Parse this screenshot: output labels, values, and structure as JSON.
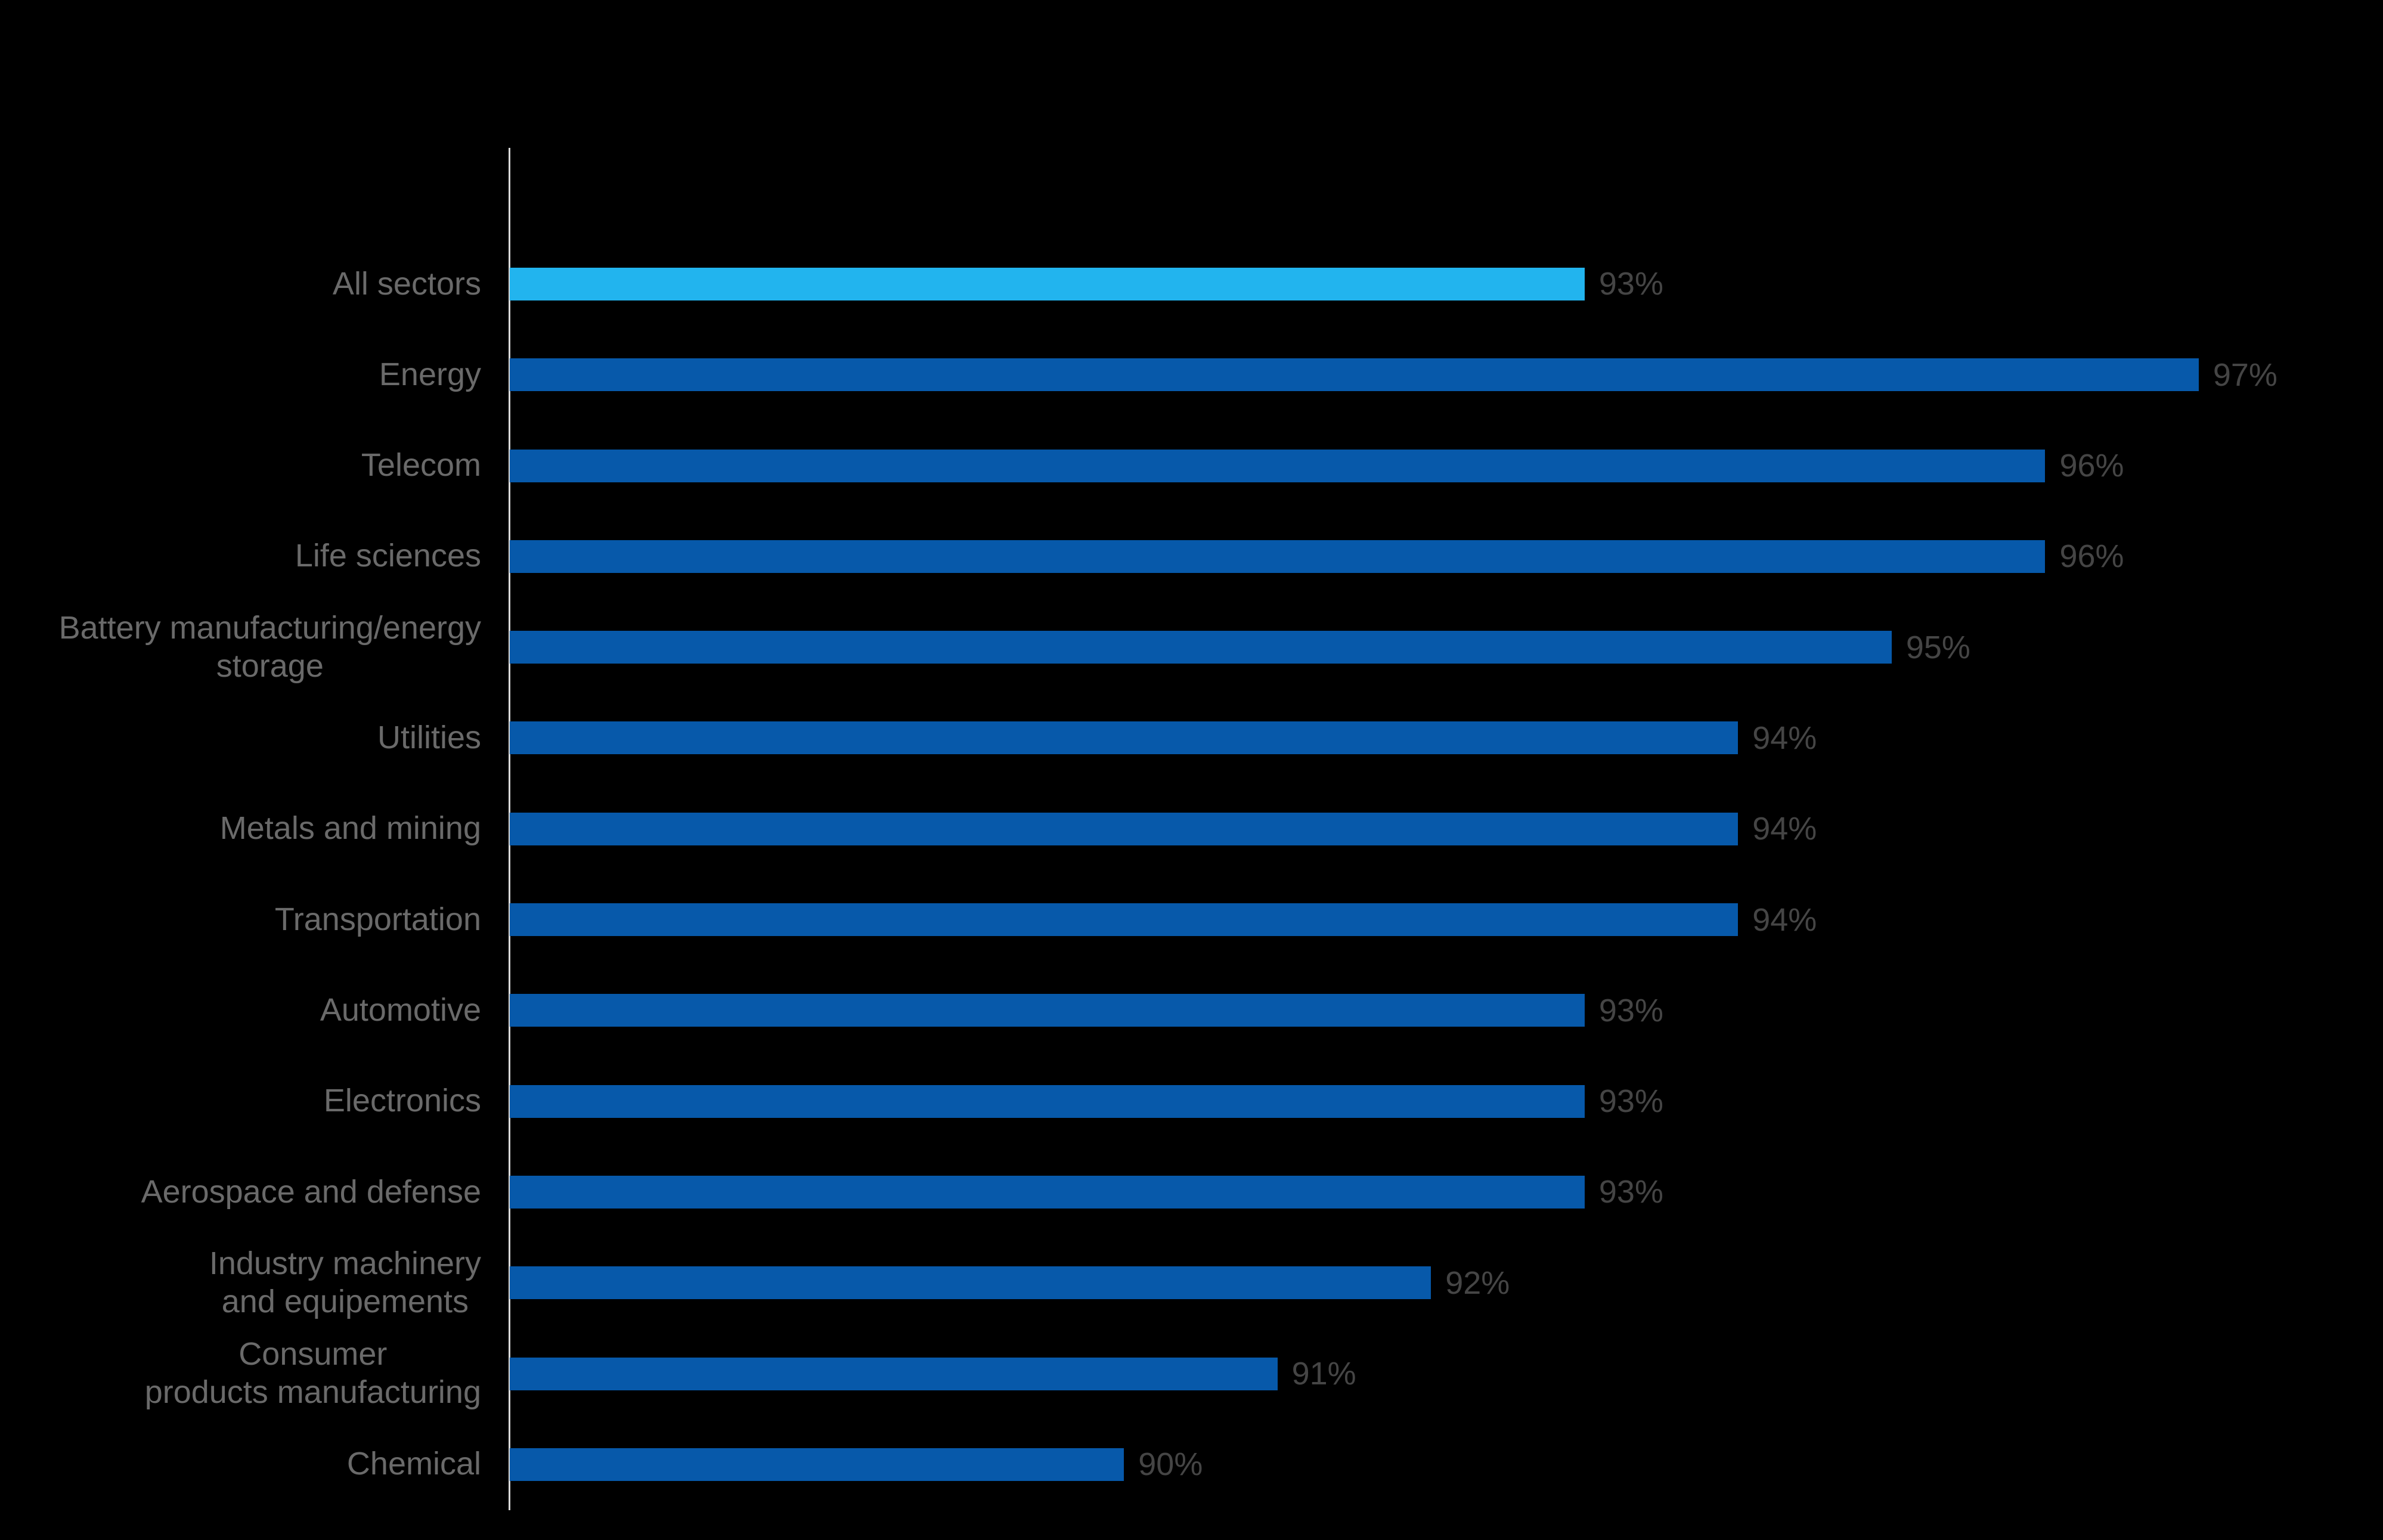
{
  "colors": {
    "background": "#000000",
    "bar": "#0759AA",
    "highlight_bar": "#22B4EE",
    "axis_line": "#D9D9D9",
    "category_label": "#6A6A6A",
    "value_label": "#454545"
  },
  "chart_data": {
    "type": "bar",
    "orientation": "horizontal",
    "title": "",
    "categories": [
      "All sectors",
      "Energy",
      "Telecom",
      "Life sciences",
      "Battery manufacturing/energy\nstorage",
      "Utilities",
      "Metals and mining",
      "Transportation",
      "Automotive",
      "Electronics",
      "Aerospace and defense",
      "Industry machinery\nand equipements",
      "Consumer\nproducts manufacturing",
      "Chemical"
    ],
    "values": [
      93,
      97,
      96,
      96,
      95,
      94,
      94,
      94,
      93,
      93,
      93,
      92,
      91,
      90
    ],
    "value_labels": [
      "93%",
      "97%",
      "96%",
      "96%",
      "95%",
      "94%",
      "94%",
      "94%",
      "93%",
      "93%",
      "93%",
      "92%",
      "91%",
      "90%"
    ],
    "unit": "%",
    "highlight_index": 0,
    "xlim": [
      86,
      98.2
    ],
    "grid": false,
    "legend": "none",
    "value_label_position": "outside-end"
  }
}
